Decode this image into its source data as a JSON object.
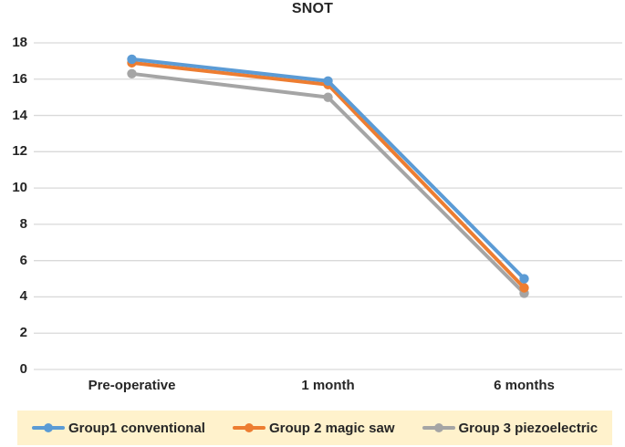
{
  "title": "SNOT",
  "colors": {
    "background": "#ffffff",
    "gridline": "#d9d9d9",
    "text": "#262626",
    "legend_background": "#fff2cc"
  },
  "chart_data": {
    "type": "line",
    "title": "SNOT",
    "categories": [
      "Pre-operative",
      "1 month",
      "6 months"
    ],
    "series": [
      {
        "name": "Group1 conventional",
        "color": "#5b9bd5",
        "values": [
          17.1,
          15.9,
          5.0
        ]
      },
      {
        "name": "Group 2 magic saw",
        "color": "#ed7d31",
        "values": [
          16.9,
          15.7,
          4.5
        ]
      },
      {
        "name": "Group 3 piezoelectric",
        "color": "#a5a5a5",
        "values": [
          16.3,
          15.0,
          4.2
        ]
      }
    ],
    "xlabel": "",
    "ylabel": "",
    "ylim": [
      0,
      18
    ],
    "yticks": [
      0,
      2,
      4,
      6,
      8,
      10,
      12,
      14,
      16,
      18
    ],
    "grid": true,
    "legend_position": "bottom",
    "marker": "circle"
  }
}
